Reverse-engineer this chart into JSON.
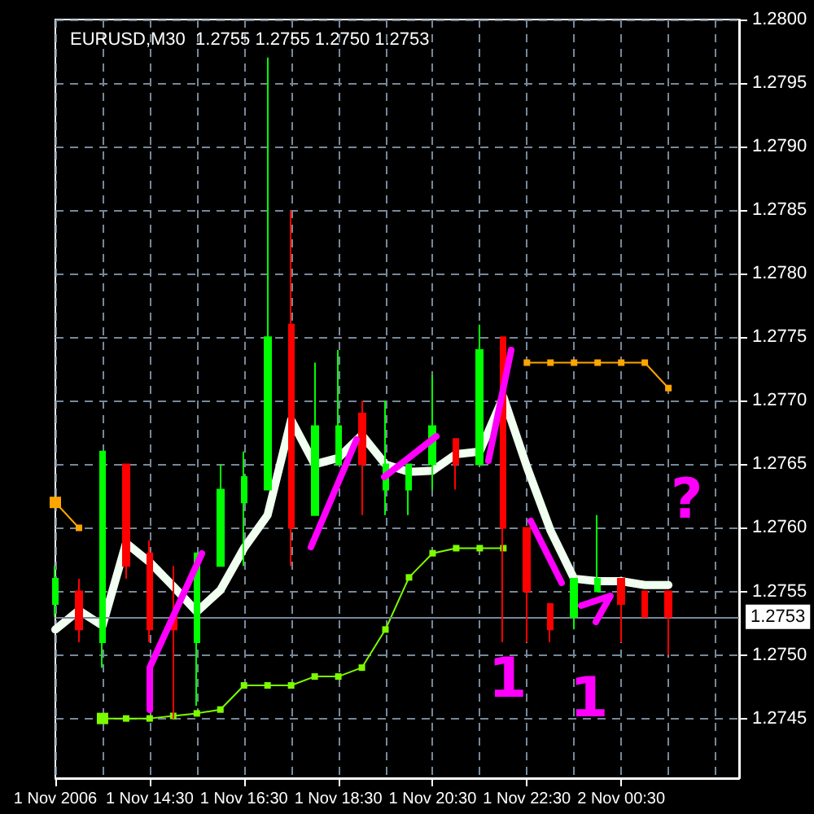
{
  "chart_data": {
    "type": "candlestick",
    "title": "EURUSD,M30  1.2755 1.2755 1.2750 1.2753",
    "categories": [
      "1 Nov 2006",
      null,
      null,
      null,
      "1 Nov 14:30",
      null,
      null,
      null,
      "1 Nov 16:30",
      null,
      null,
      null,
      "1 Nov 18:30",
      null,
      null,
      null,
      "1 Nov 20:30",
      null,
      null,
      null,
      "1 Nov 22:30",
      null,
      null,
      null,
      "2 Nov 00:30",
      null,
      null,
      null,
      null,
      null
    ],
    "ohlc": [
      [
        1.2754,
        1.2757,
        1.2753,
        1.2756
      ],
      [
        1.2755,
        1.2756,
        1.2751,
        1.2752
      ],
      [
        1.2751,
        1.2766,
        1.2749,
        1.2766
      ],
      [
        1.2765,
        1.2765,
        1.2756,
        1.2757
      ],
      [
        1.2758,
        1.2759,
        1.2751,
        1.2752
      ],
      [
        1.2753,
        1.2757,
        1.2745,
        1.2752
      ],
      [
        1.2751,
        1.2758,
        1.2746,
        1.2758
      ],
      [
        1.2757,
        1.2765,
        1.2757,
        1.2763
      ],
      [
        1.2762,
        1.2766,
        1.2757,
        1.2764
      ],
      [
        1.2763,
        1.2797,
        1.2763,
        1.2775
      ],
      [
        1.2776,
        1.2785,
        1.2757,
        1.276
      ],
      [
        1.2761,
        1.2773,
        1.2761,
        1.2768
      ],
      [
        1.2765,
        1.2774,
        1.2765,
        1.2768
      ],
      [
        1.2769,
        1.277,
        1.2761,
        1.2765
      ],
      [
        1.2763,
        1.277,
        1.2761,
        1.2765
      ],
      [
        1.2763,
        1.2765,
        1.2761,
        1.2765
      ],
      [
        1.2765,
        1.2772,
        1.2763,
        1.2768
      ],
      [
        1.2767,
        1.2767,
        1.2763,
        1.2765
      ],
      [
        1.2765,
        1.2776,
        1.2765,
        1.2774
      ],
      [
        1.2775,
        1.2775,
        1.2751,
        1.276
      ],
      [
        1.276,
        1.276,
        1.2751,
        1.2755
      ],
      [
        1.2754,
        1.2754,
        1.2751,
        1.2752
      ],
      [
        1.2753,
        1.2756,
        1.2752,
        1.2756
      ],
      [
        1.2755,
        1.2761,
        1.2755,
        1.2756
      ],
      [
        1.2756,
        1.2756,
        1.2751,
        1.2754
      ],
      [
        1.2755,
        1.2755,
        1.2753,
        1.2753
      ],
      [
        1.2755,
        1.2755,
        1.275,
        1.2753
      ],
      null,
      null,
      null
    ],
    "colors": [
      "#00ff00",
      "#ff0000",
      "#00ff00",
      "#ff0000",
      "#ff0000",
      "#ff0000",
      "#00ff00",
      "#00ff00",
      "#00ff00",
      "#00ff00",
      "#ff0000",
      "#00ff00",
      "#00ff00",
      "#ff0000",
      "#00ff00",
      "#00ff00",
      "#00ff00",
      "#ff0000",
      "#00ff00",
      "#ff0000",
      "#ff0000",
      "#ff0000",
      "#00ff00",
      "#00ff00",
      "#ff0000",
      "#ff0000",
      "#ff0000",
      null,
      null,
      null
    ],
    "series": [
      {
        "type": "line",
        "color": "#f0fff0",
        "marker": "none",
        "values": [
          1.2752,
          1.27535,
          1.27523,
          1.27588,
          1.27573,
          1.27554,
          1.27534,
          1.27551,
          1.27584,
          1.2761,
          1.27685,
          1.2765,
          1.27655,
          1.27673,
          1.2765,
          1.27644,
          1.27645,
          1.27658,
          1.2766,
          1.27703,
          1.27648,
          1.27598,
          1.2756,
          1.27558,
          1.27558,
          1.27555,
          1.27555,
          null,
          null,
          null
        ]
      },
      {
        "type": "line",
        "color": "#7cfc00",
        "marker": "square",
        "values": [
          null,
          null,
          1.2745,
          1.2745,
          1.2745,
          1.27452,
          1.27454,
          1.27457,
          1.27476,
          1.27476,
          1.27476,
          1.27483,
          1.27483,
          1.2749,
          1.2752,
          1.27561,
          1.2758,
          1.27584,
          1.27584,
          1.27584,
          null,
          null,
          null,
          null,
          null,
          null,
          null,
          null,
          null,
          null
        ]
      },
      {
        "type": "line",
        "color": "#ffa500",
        "marker": "square",
        "values": [
          1.2762,
          1.276,
          null,
          null,
          null,
          null,
          null,
          null,
          null,
          null,
          null,
          null,
          null,
          null,
          null,
          null,
          null,
          null,
          null,
          null,
          1.2773,
          1.2773,
          1.2773,
          1.2773,
          1.2773,
          1.2773,
          1.2771,
          null,
          null,
          null
        ]
      }
    ],
    "ylim": [
      1.27403,
      1.28
    ],
    "yticks": [
      {
        "value": 1.2745,
        "label": "1.2745"
      },
      {
        "value": 1.275,
        "label": "1.2750"
      },
      {
        "value": 1.2755,
        "label": "1.2755"
      },
      {
        "value": 1.276,
        "label": "1.2760"
      },
      {
        "value": 1.2765,
        "label": "1.2765"
      },
      {
        "value": 1.277,
        "label": "1.2770"
      },
      {
        "value": 1.2775,
        "label": "1.2775"
      },
      {
        "value": 1.278,
        "label": "1.2780"
      },
      {
        "value": 1.2785,
        "label": "1.2785"
      },
      {
        "value": 1.279,
        "label": "1.2790"
      },
      {
        "value": 1.2795,
        "label": "1.2795"
      },
      {
        "value": 1.28,
        "label": "1.2800"
      }
    ],
    "ref_lines": [
      {
        "axis": "y",
        "value": 1.2753,
        "label": "1.2753",
        "color": "#778899"
      }
    ],
    "grid": true,
    "annotations": [
      "1",
      "1",
      "?"
    ]
  }
}
